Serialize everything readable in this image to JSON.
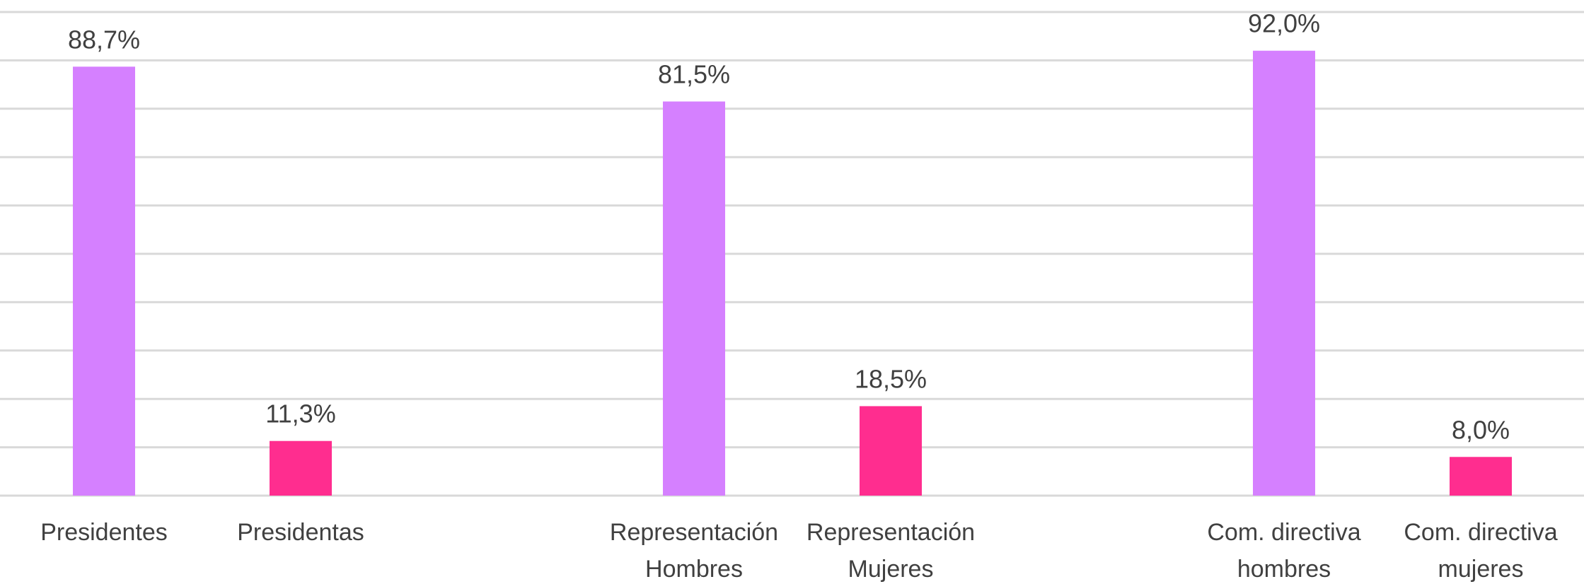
{
  "chart_data": {
    "type": "bar",
    "categories": [
      "Presidentes",
      "Presidentas",
      null,
      "Representación Hombres",
      "Representación Mujeres",
      null,
      "Com. directiva hombres",
      "Com. directiva mujeres"
    ],
    "values": [
      88.7,
      11.3,
      null,
      81.5,
      18.5,
      null,
      92.0,
      8.0
    ],
    "value_labels": [
      "88,7%",
      "11,3%",
      null,
      "81,5%",
      "18,5%",
      null,
      "92,0%",
      "8,0%"
    ],
    "colors": [
      "#d580ff",
      "#ff2d8f",
      null,
      "#d580ff",
      "#ff2d8f",
      null,
      "#d580ff",
      "#ff2d8f"
    ],
    "ylim": [
      0,
      100
    ],
    "yticks": [
      0,
      10,
      20,
      30,
      40,
      50,
      60,
      70,
      80,
      90,
      100
    ],
    "grid": true
  }
}
